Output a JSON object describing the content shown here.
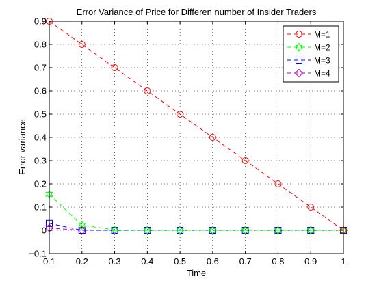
{
  "chart_data": {
    "type": "line",
    "title": "Error Variance of Price for Differen number of Insider Traders",
    "xlabel": "Time",
    "ylabel": "Error variance",
    "xlim": [
      0.1,
      1
    ],
    "ylim": [
      -0.1,
      0.9
    ],
    "x_ticks": [
      "0.1",
      "0.2",
      "0.3",
      "0.4",
      "0.5",
      "0.6",
      "0.7",
      "0.8",
      "0.9",
      "1"
    ],
    "y_ticks": [
      "−0.1",
      "0",
      "0.1",
      "0.2",
      "0.3",
      "0.4",
      "0.5",
      "0.6",
      "0.7",
      "0.8",
      "0.9"
    ],
    "grid": true,
    "legend_position": "top-right",
    "x": [
      0.1,
      0.2,
      0.3,
      0.4,
      0.5,
      0.6,
      0.7,
      0.8,
      0.9,
      1.0
    ],
    "series": [
      {
        "name": "M=1",
        "color": "#ff0000",
        "marker": "circle",
        "values": [
          0.9,
          0.8,
          0.7,
          0.6,
          0.5,
          0.4,
          0.3,
          0.2,
          0.1,
          0.0
        ]
      },
      {
        "name": "M=2",
        "color": "#00ff00",
        "marker": "hexagram",
        "values": [
          0.155,
          0.022,
          0.002,
          0.0,
          0.0,
          0.0,
          0.0,
          0.0,
          0.0,
          0.0
        ]
      },
      {
        "name": "M=3",
        "color": "#0000ff",
        "marker": "square",
        "values": [
          0.03,
          0.0,
          0.0,
          0.0,
          0.0,
          0.0,
          0.0,
          0.0,
          0.0,
          0.0
        ]
      },
      {
        "name": "M=4",
        "color": "#bf00bf",
        "marker": "diamond",
        "values": [
          0.01,
          0.0,
          0.0,
          0.0,
          0.0,
          0.0,
          0.0,
          0.0,
          0.0,
          0.0
        ]
      }
    ]
  }
}
